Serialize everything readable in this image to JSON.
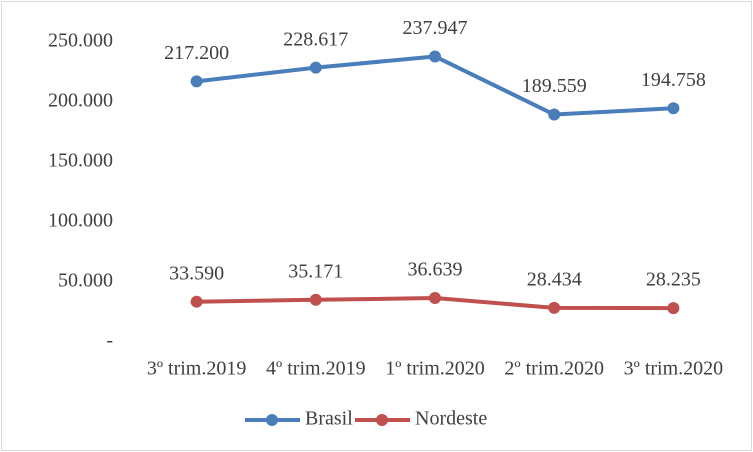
{
  "chart_data": {
    "type": "line",
    "categories": [
      "3º trim.2019",
      "4º trim.2019",
      "1º trim.2020",
      "2º trim.2020",
      "3º trim.2020"
    ],
    "series": [
      {
        "name": "Brasil",
        "color": "#4a7ebb",
        "values": [
          217200,
          228617,
          237947,
          189559,
          194758
        ],
        "value_labels": [
          "217.200",
          "228.617",
          "237.947",
          "189.559",
          "194.758"
        ]
      },
      {
        "name": "Nordeste",
        "color": "#c0504d",
        "values": [
          33590,
          35171,
          36639,
          28434,
          28235
        ],
        "value_labels": [
          "33.590",
          "35.171",
          "36.639",
          "28.434",
          "28.235"
        ]
      }
    ],
    "ylim": [
      0,
      250000
    ],
    "yticks": [
      {
        "value": 0,
        "label": "-"
      },
      {
        "value": 50000,
        "label": "50.000"
      },
      {
        "value": 100000,
        "label": "100.000"
      },
      {
        "value": 150000,
        "label": "150.000"
      },
      {
        "value": 200000,
        "label": "200.000"
      },
      {
        "value": 250000,
        "label": "250.000"
      }
    ],
    "grid": false,
    "legend": "bottom"
  }
}
